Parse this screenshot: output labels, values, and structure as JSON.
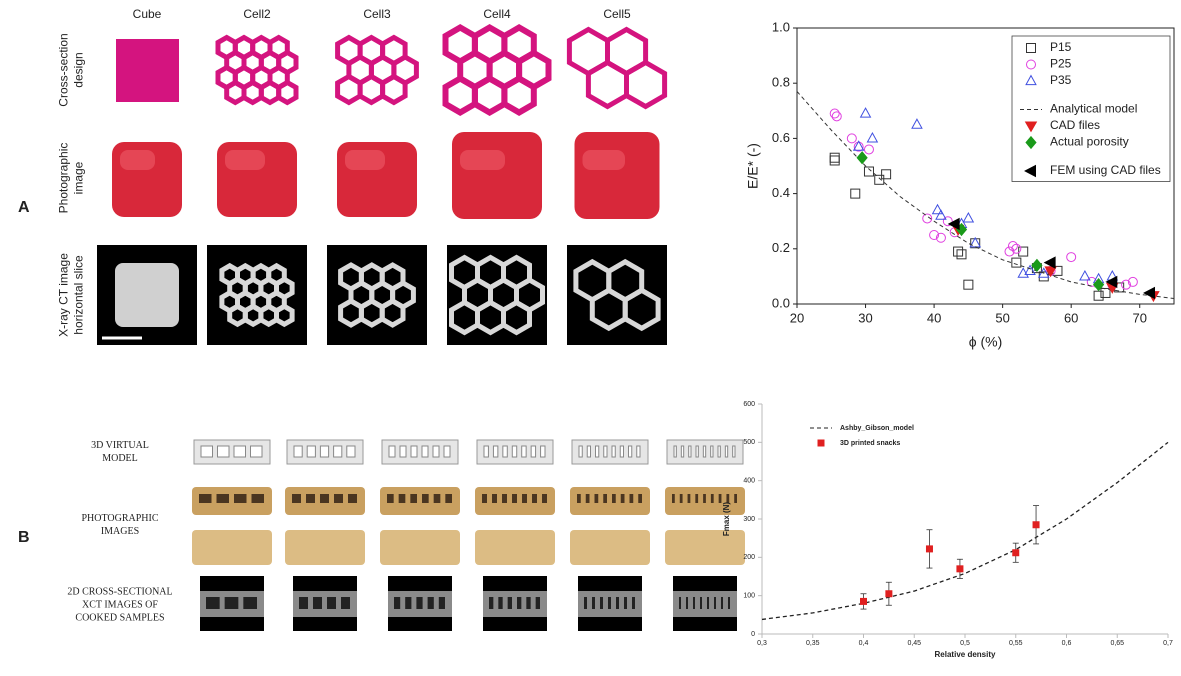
{
  "panel_a": {
    "letter": "A",
    "columns": [
      "Cube",
      "Cell2",
      "Cell3",
      "Cell4",
      "Cell5"
    ],
    "row_labels": [
      [
        "Cross-section",
        "design"
      ],
      [
        "Photographic",
        "image"
      ],
      [
        "X-ray CT image",
        "horizontal slice"
      ]
    ]
  },
  "panel_b": {
    "letter": "B",
    "row_labels": [
      [
        "3D VIRTUAL",
        "MODEL"
      ],
      [
        "PHOTOGRAPHIC",
        "IMAGES"
      ],
      [
        "2D CROSS-SECTIONAL",
        "XCT IMAGES OF",
        "COOKED SAMPLES"
      ]
    ]
  },
  "chart_data": [
    {
      "type": "scatter",
      "xlabel": "ϕ (%)",
      "ylabel": "E/E* (-)",
      "xlim": [
        20,
        75
      ],
      "xticks": [
        20,
        30,
        40,
        50,
        60,
        70
      ],
      "ylim": [
        0,
        1
      ],
      "yticks": [
        {
          "value": 0,
          "label": "0.0"
        },
        0.2,
        0.4,
        0.6,
        0.8,
        {
          "value": 1,
          "label": "1.0"
        }
      ],
      "legend": "upper right",
      "series": [
        {
          "name": "P15",
          "marker": "square",
          "filled": false,
          "color": "#333333",
          "x": [
            25.5,
            25.5,
            28.5,
            30.5,
            32,
            33,
            43.5,
            44,
            45,
            46,
            52,
            53,
            55,
            56,
            58,
            64,
            65,
            67
          ],
          "values": [
            0.52,
            0.53,
            0.4,
            0.48,
            0.45,
            0.47,
            0.19,
            0.18,
            0.07,
            0.22,
            0.15,
            0.19,
            0.13,
            0.1,
            0.12,
            0.03,
            0.04,
            0.06
          ]
        },
        {
          "name": "P25",
          "marker": "circle",
          "filled": false,
          "color": "#e040e0",
          "x": [
            25.5,
            25.8,
            28,
            29,
            30.5,
            39,
            40,
            41,
            42,
            43,
            51,
            51.5,
            52,
            57,
            60,
            63,
            66,
            68,
            69
          ],
          "values": [
            0.69,
            0.68,
            0.6,
            0.57,
            0.56,
            0.31,
            0.25,
            0.24,
            0.3,
            0.26,
            0.19,
            0.21,
            0.2,
            0.12,
            0.17,
            0.08,
            0.07,
            0.07,
            0.08
          ]
        },
        {
          "name": "P35",
          "marker": "triangle",
          "filled": false,
          "color": "#4050e0",
          "x": [
            29,
            30,
            31,
            37.5,
            40.5,
            41,
            44,
            45,
            46,
            53,
            54,
            56,
            62,
            64,
            66
          ],
          "values": [
            0.57,
            0.69,
            0.6,
            0.65,
            0.34,
            0.32,
            0.29,
            0.31,
            0.22,
            0.11,
            0.12,
            0.11,
            0.1,
            0.09,
            0.1
          ]
        },
        {
          "name": "Analytical model",
          "marker": "line",
          "style": "dashed",
          "color": "#333333",
          "x": [
            20,
            25,
            30,
            35,
            40,
            45,
            50,
            55,
            60,
            65,
            70,
            75
          ],
          "values": [
            0.77,
            0.63,
            0.5,
            0.39,
            0.3,
            0.22,
            0.16,
            0.12,
            0.08,
            0.055,
            0.035,
            0.02
          ]
        },
        {
          "name": "CAD files",
          "marker": "triangle-down",
          "filled": true,
          "color": "#e02020",
          "x": [
            43.5,
            57,
            66,
            72
          ],
          "values": [
            0.27,
            0.12,
            0.06,
            0.03
          ]
        },
        {
          "name": "Actual porosity",
          "marker": "diamond",
          "filled": true,
          "color": "#1a9a1a",
          "x": [
            29.5,
            44,
            55,
            64
          ],
          "values": [
            0.53,
            0.27,
            0.14,
            0.07
          ]
        },
        {
          "name": "FEM using CAD files",
          "marker": "triangle-left",
          "filled": true,
          "color": "#000000",
          "x": [
            43,
            57,
            66,
            71.5
          ],
          "values": [
            0.29,
            0.15,
            0.08,
            0.04
          ]
        }
      ]
    },
    {
      "type": "scatter",
      "xlabel": "Relative density",
      "ylabel": "Fmax (N)",
      "xlim": [
        0.3,
        0.7
      ],
      "xticks": [
        {
          "value": 0.3,
          "label": "0,3"
        },
        {
          "value": 0.35,
          "label": "0,35"
        },
        {
          "value": 0.4,
          "label": "0,4"
        },
        {
          "value": 0.45,
          "label": "0,45"
        },
        {
          "value": 0.5,
          "label": "0,5"
        },
        {
          "value": 0.55,
          "label": "0,55"
        },
        {
          "value": 0.6,
          "label": "0,6"
        },
        {
          "value": 0.65,
          "label": "0,65"
        },
        {
          "value": 0.7,
          "label": "0,7"
        }
      ],
      "ylim": [
        0,
        600
      ],
      "yticks": [
        0,
        100,
        200,
        300,
        400,
        500,
        600
      ],
      "legend": "upper left",
      "series": [
        {
          "name": "Ashby_Gibson_model",
          "marker": "line",
          "style": "dashed",
          "color": "#222222",
          "x": [
            0.3,
            0.35,
            0.4,
            0.45,
            0.5,
            0.55,
            0.6,
            0.65,
            0.7
          ],
          "values": [
            38,
            55,
            80,
            112,
            158,
            220,
            300,
            395,
            500
          ]
        },
        {
          "name": "3D printed snacks",
          "marker": "square",
          "filled": true,
          "color": "#e02020",
          "x": [
            0.4,
            0.425,
            0.465,
            0.495,
            0.55,
            0.57
          ],
          "values": [
            85,
            105,
            222,
            170,
            212,
            285
          ],
          "errors": [
            20,
            30,
            50,
            25,
            25,
            50
          ]
        }
      ]
    }
  ]
}
